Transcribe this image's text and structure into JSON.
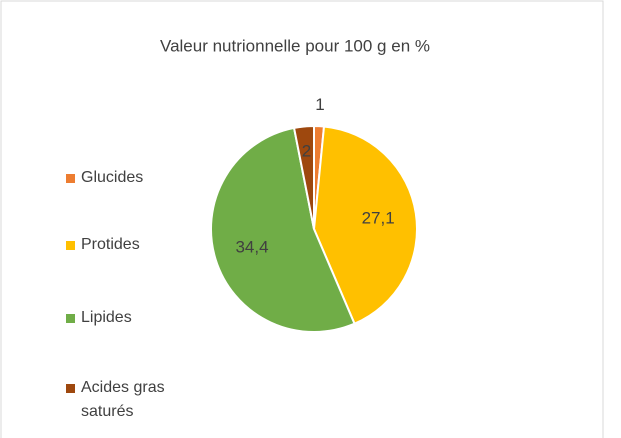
{
  "chart_data": {
    "type": "pie",
    "title": "Valeur nutrionnelle pour 100 g en %",
    "categories": [
      "Glucides",
      "Protides",
      "Lipides",
      "Acides gras saturés"
    ],
    "values": [
      1,
      27.1,
      34.4,
      2
    ],
    "value_labels": [
      "1",
      "27,1",
      "34,4",
      "2"
    ],
    "colors": [
      "#ED7D31",
      "#FFC000",
      "#70AD47",
      "#9E480E"
    ],
    "legend": "left"
  }
}
